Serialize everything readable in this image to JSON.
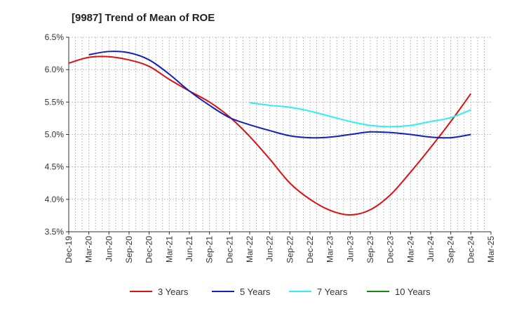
{
  "chart_data": {
    "type": "line",
    "title": "[9987]  Trend of Mean of ROE",
    "xlabel": "",
    "ylabel": "",
    "x_tick_labels": [
      "Dec-19",
      "Mar-20",
      "Jun-20",
      "Sep-20",
      "Dec-20",
      "Mar-21",
      "Jun-21",
      "Sep-21",
      "Dec-21",
      "Mar-22",
      "Jun-22",
      "Sep-22",
      "Dec-22",
      "Mar-23",
      "Jun-23",
      "Sep-23",
      "Dec-23",
      "Mar-24",
      "Jun-24",
      "Sep-24",
      "Dec-24",
      "Mar-25"
    ],
    "y_tick_labels": [
      "6.5%",
      "6.0%",
      "5.5%",
      "5.0%",
      "4.5%",
      "4.0%",
      "3.5%"
    ],
    "ylim": [
      3.5,
      6.5
    ],
    "grid": true,
    "legend_position": "bottom",
    "series": [
      {
        "name": "3 Years",
        "color": "#dd1111",
        "values": [
          6.1,
          6.19,
          6.2,
          6.15,
          6.05,
          5.85,
          5.67,
          5.5,
          5.27,
          4.97,
          4.62,
          4.25,
          4.0,
          3.83,
          3.76,
          3.84,
          4.07,
          4.42,
          4.8,
          5.2,
          5.63,
          null
        ]
      },
      {
        "name": "5 Years",
        "color": "#1122bb",
        "values": [
          null,
          6.23,
          6.28,
          6.26,
          6.15,
          5.93,
          5.67,
          5.45,
          5.26,
          5.15,
          5.06,
          4.98,
          4.95,
          4.96,
          5.0,
          5.04,
          5.03,
          5.0,
          4.96,
          4.95,
          5.0,
          null
        ]
      },
      {
        "name": "7 Years",
        "color": "#33eeee",
        "values": [
          null,
          null,
          null,
          null,
          null,
          null,
          null,
          null,
          null,
          5.49,
          5.45,
          5.42,
          5.36,
          5.28,
          5.2,
          5.14,
          5.12,
          5.14,
          5.2,
          5.26,
          5.38,
          null
        ]
      },
      {
        "name": "10 Years",
        "color": "#118811",
        "values": [
          null,
          null,
          null,
          null,
          null,
          null,
          null,
          null,
          null,
          null,
          null,
          null,
          null,
          null,
          null,
          null,
          null,
          null,
          null,
          null,
          null,
          null
        ]
      }
    ]
  }
}
